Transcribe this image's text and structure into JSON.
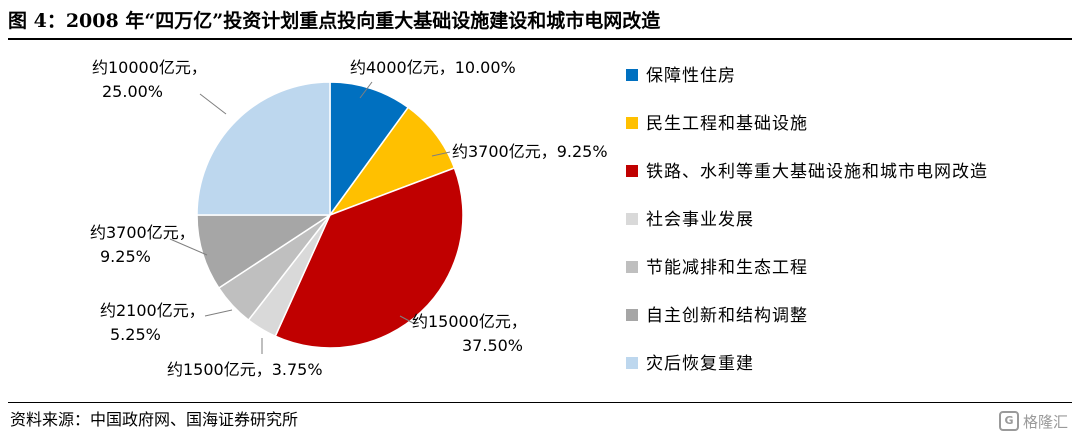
{
  "title": "图 4：2008 年“四万亿”投资计划重点投向重大基础设施建设和城市电网改造",
  "source": "资料来源：中国政府网、国海证券研究所",
  "watermark": {
    "text": "格隆汇",
    "logo": "G"
  },
  "chart_data": {
    "type": "pie",
    "title": "",
    "start_angle_deg": 0,
    "direction": "clockwise",
    "slices": [
      {
        "name": "保障性住房",
        "value": 4000,
        "percent": 10.0,
        "color": "#0070C0",
        "label_lines": [
          "约4000亿元，10.00%"
        ]
      },
      {
        "name": "民生工程和基础设施",
        "value": 3700,
        "percent": 9.25,
        "color": "#FFC000",
        "label_lines": [
          "约3700亿元，9.25%"
        ]
      },
      {
        "name": "铁路、水利等重大基础设施和城市电网改造",
        "value": 15000,
        "percent": 37.5,
        "color": "#C00000",
        "label_lines": [
          "约15000亿元，",
          "37.50%"
        ]
      },
      {
        "name": "社会事业发展",
        "value": 1500,
        "percent": 3.75,
        "color": "#D9D9D9",
        "label_lines": [
          "约1500亿元，3.75%"
        ]
      },
      {
        "name": "节能减排和生态工程",
        "value": 2100,
        "percent": 5.25,
        "color": "#BFBFBF",
        "label_lines": [
          "约2100亿元，",
          "5.25%"
        ]
      },
      {
        "name": "自主创新和结构调整",
        "value": 3700,
        "percent": 9.25,
        "color": "#A6A6A6",
        "label_lines": [
          "约3700亿元，",
          "9.25%"
        ]
      },
      {
        "name": "灾后恢复重建",
        "value": 10000,
        "percent": 25.0,
        "color": "#BDD7EE",
        "label_lines": [
          "约10000亿元，",
          "25.00%"
        ]
      }
    ],
    "legend_position": "right"
  }
}
